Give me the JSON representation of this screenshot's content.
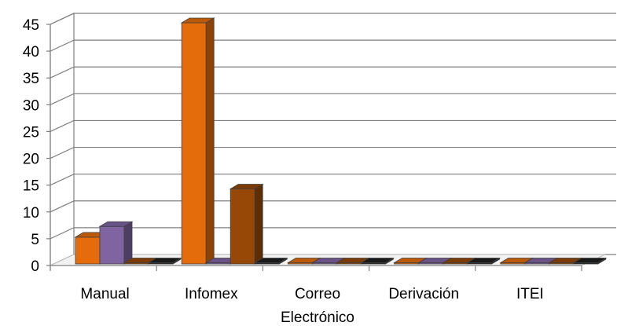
{
  "chart_data": {
    "type": "bar",
    "style": "3d-clustered-column",
    "title": "",
    "xlabel": "",
    "ylabel": "",
    "ylim": [
      0,
      45
    ],
    "yticks": [
      0,
      5,
      10,
      15,
      20,
      25,
      30,
      35,
      40,
      45
    ],
    "grid": true,
    "legend": "none",
    "categories": [
      [
        "Manual"
      ],
      [
        "Infomex"
      ],
      [
        "Correo",
        "Electrónico"
      ],
      [
        "Derivación"
      ],
      [
        "ITEI"
      ]
    ],
    "series": [
      {
        "color": "#e46c0a",
        "values": [
          5,
          45,
          0,
          0,
          0
        ]
      },
      {
        "color": "#8064a2",
        "values": [
          7,
          0,
          0,
          0,
          0
        ]
      },
      {
        "color": "#974806",
        "values": [
          0,
          14,
          0,
          0,
          0
        ]
      },
      {
        "color": "#1f1f1f",
        "values": [
          0,
          0,
          0,
          0,
          0
        ]
      }
    ]
  }
}
